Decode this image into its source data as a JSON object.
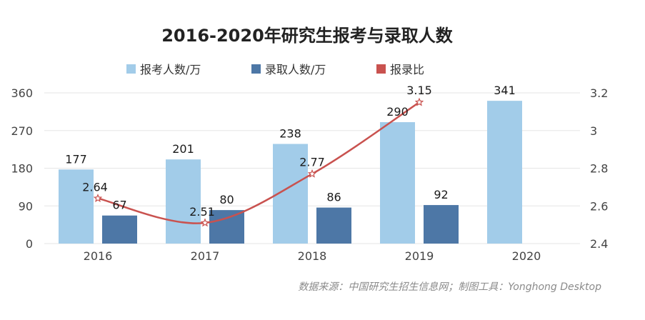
{
  "chart_data": {
    "type": "bar",
    "title": "2016-2020年研究生报考与录取人数",
    "categories": [
      "2016",
      "2017",
      "2018",
      "2019",
      "2020"
    ],
    "series": [
      {
        "name": "报考人数/万",
        "kind": "bar",
        "axis": "left",
        "color": "#a2cce9",
        "values": [
          177,
          201,
          238,
          290,
          341
        ],
        "labels": [
          "177",
          "201",
          "238",
          "290",
          "341"
        ]
      },
      {
        "name": "录取人数/万",
        "kind": "bar",
        "axis": "left",
        "color": "#4d77a6",
        "values": [
          67,
          80,
          86,
          92,
          null
        ],
        "labels": [
          "67",
          "80",
          "86",
          "92",
          ""
        ]
      },
      {
        "name": "报录比",
        "kind": "line",
        "axis": "right",
        "color": "#c9524f",
        "values": [
          2.64,
          2.51,
          2.77,
          3.15,
          null
        ],
        "labels": [
          "2.64",
          "2.51",
          "2.77",
          "3.15",
          ""
        ]
      }
    ],
    "y_left": {
      "min": 0,
      "max": 360,
      "ticks": [
        0,
        90,
        180,
        270,
        360
      ],
      "tick_labels": [
        "0",
        "90",
        "180",
        "270",
        "360"
      ]
    },
    "y_right": {
      "min": 2.4,
      "max": 3.2,
      "ticks": [
        2.4,
        2.6,
        2.8,
        3.0,
        3.2
      ],
      "tick_labels": [
        "2.4",
        "2.6",
        "2.8",
        "3",
        "3.2"
      ]
    },
    "legend_position": "top-center",
    "source": "数据来源：中国研究生招生信息网；制图工具：Yonghong Desktop"
  }
}
